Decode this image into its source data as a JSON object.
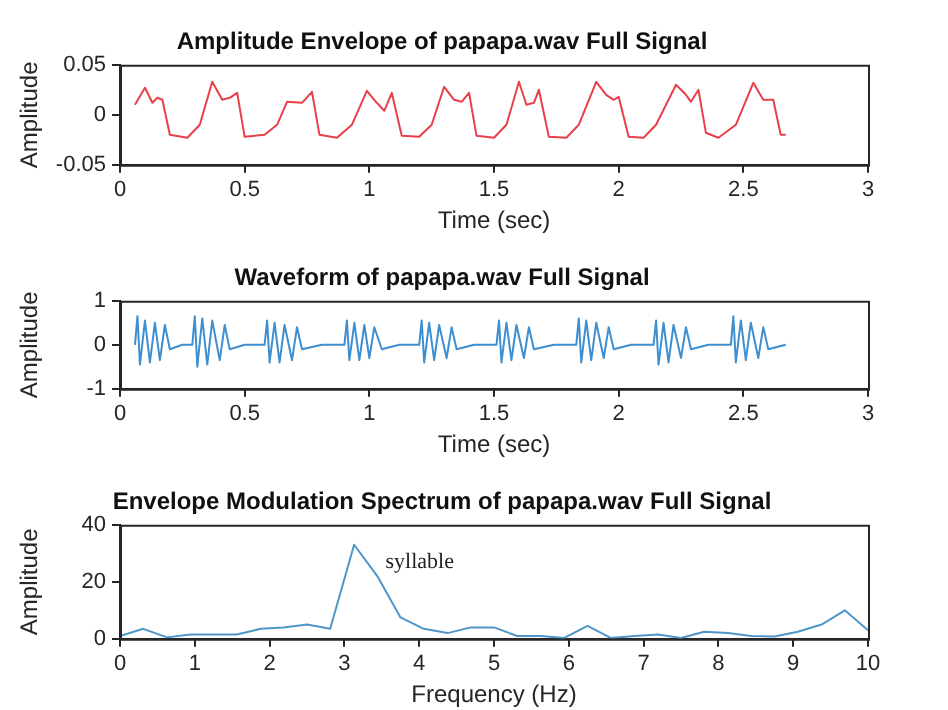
{
  "chart_data": [
    {
      "type": "line",
      "title": "Amplitude Envelope of papapa.wav Full Signal",
      "xlabel": "Time (sec)",
      "ylabel": "Amplitude",
      "xlim": [
        0,
        3
      ],
      "xticks": [
        0,
        0.5,
        1,
        1.5,
        2,
        2.5,
        3
      ],
      "ylim": [
        -0.05,
        0.05
      ],
      "yticks": [
        -0.05,
        0,
        0.05
      ],
      "grid": false,
      "legend": false,
      "series": [
        {
          "color": "#e8404a",
          "x": [
            0.06,
            0.1,
            0.13,
            0.15,
            0.17,
            0.2,
            0.27,
            0.32,
            0.37,
            0.41,
            0.44,
            0.47,
            0.5,
            0.58,
            0.63,
            0.67,
            0.73,
            0.77,
            0.8,
            0.87,
            0.93,
            0.99,
            1.03,
            1.06,
            1.09,
            1.13,
            1.2,
            1.25,
            1.3,
            1.34,
            1.37,
            1.4,
            1.43,
            1.5,
            1.55,
            1.6,
            1.63,
            1.66,
            1.68,
            1.72,
            1.79,
            1.84,
            1.91,
            1.95,
            1.98,
            2.0,
            2.04,
            2.1,
            2.15,
            2.23,
            2.27,
            2.29,
            2.32,
            2.35,
            2.4,
            2.47,
            2.54,
            2.58,
            2.62,
            2.65,
            2.67
          ],
          "values": [
            0.01,
            0.027,
            0.012,
            0.017,
            0.015,
            -0.02,
            -0.023,
            -0.01,
            0.033,
            0.015,
            0.017,
            0.022,
            -0.022,
            -0.02,
            -0.01,
            0.013,
            0.012,
            0.023,
            -0.02,
            -0.023,
            -0.01,
            0.024,
            0.012,
            0.004,
            0.022,
            -0.021,
            -0.022,
            -0.01,
            0.028,
            0.015,
            0.013,
            0.022,
            -0.021,
            -0.023,
            -0.01,
            0.033,
            0.01,
            0.012,
            0.025,
            -0.022,
            -0.023,
            -0.01,
            0.033,
            0.02,
            0.015,
            0.018,
            -0.022,
            -0.023,
            -0.01,
            0.03,
            0.02,
            0.013,
            0.025,
            -0.018,
            -0.023,
            -0.01,
            0.032,
            0.015,
            0.015,
            -0.02,
            -0.02
          ]
        }
      ]
    },
    {
      "type": "line",
      "title": "Waveform of papapa.wav Full Signal",
      "xlabel": "Time (sec)",
      "ylabel": "Amplitude",
      "xlim": [
        0,
        3
      ],
      "xticks": [
        0,
        0.5,
        1,
        1.5,
        2,
        2.5,
        3
      ],
      "ylim": [
        -1,
        1
      ],
      "yticks": [
        -1,
        0,
        1
      ],
      "grid": false,
      "legend": false,
      "series": [
        {
          "color": "#3d8fd1",
          "x": [
            0.06,
            0.07,
            0.08,
            0.1,
            0.12,
            0.14,
            0.16,
            0.18,
            0.2,
            0.25,
            0.29,
            0.3,
            0.31,
            0.33,
            0.35,
            0.37,
            0.4,
            0.42,
            0.44,
            0.5,
            0.58,
            0.59,
            0.6,
            0.62,
            0.64,
            0.66,
            0.69,
            0.71,
            0.73,
            0.81,
            0.9,
            0.91,
            0.92,
            0.94,
            0.96,
            0.98,
            1.0,
            1.02,
            1.05,
            1.12,
            1.2,
            1.21,
            1.22,
            1.24,
            1.26,
            1.28,
            1.31,
            1.33,
            1.35,
            1.42,
            1.51,
            1.52,
            1.53,
            1.55,
            1.57,
            1.59,
            1.62,
            1.64,
            1.66,
            1.74,
            1.83,
            1.84,
            1.85,
            1.87,
            1.89,
            1.91,
            1.94,
            1.96,
            1.98,
            2.05,
            2.14,
            2.15,
            2.16,
            2.18,
            2.2,
            2.22,
            2.25,
            2.27,
            2.29,
            2.36,
            2.45,
            2.46,
            2.47,
            2.49,
            2.51,
            2.53,
            2.56,
            2.58,
            2.6,
            2.67
          ],
          "values": [
            0,
            0.65,
            -0.45,
            0.55,
            -0.4,
            0.5,
            -0.35,
            0.45,
            -0.1,
            0,
            0,
            0.65,
            -0.5,
            0.6,
            -0.45,
            0.55,
            -0.35,
            0.45,
            -0.1,
            0,
            0,
            0.55,
            -0.4,
            0.5,
            -0.4,
            0.45,
            -0.35,
            0.4,
            -0.1,
            0,
            0,
            0.55,
            -0.35,
            0.5,
            -0.35,
            0.45,
            -0.3,
            0.4,
            -0.1,
            0,
            0,
            0.55,
            -0.4,
            0.5,
            -0.35,
            0.45,
            -0.3,
            0.4,
            -0.1,
            0,
            0,
            0.55,
            -0.4,
            0.5,
            -0.35,
            0.45,
            -0.3,
            0.4,
            -0.1,
            0,
            0,
            0.6,
            -0.4,
            0.55,
            -0.35,
            0.5,
            -0.3,
            0.4,
            -0.1,
            0,
            0,
            0.55,
            -0.45,
            0.5,
            -0.4,
            0.45,
            -0.3,
            0.4,
            -0.1,
            0,
            0,
            0.65,
            -0.4,
            0.55,
            -0.35,
            0.5,
            -0.3,
            0.4,
            -0.1,
            0
          ]
        }
      ]
    },
    {
      "type": "line",
      "title": "Envelope Modulation Spectrum of papapa.wav Full Signal",
      "xlabel": "Frequency (Hz)",
      "ylabel": "Amplitude",
      "xlim": [
        0,
        10
      ],
      "xticks": [
        0,
        1,
        2,
        3,
        4,
        5,
        6,
        7,
        8,
        9,
        10
      ],
      "ylim": [
        0,
        40
      ],
      "yticks": [
        0,
        20,
        40
      ],
      "grid": false,
      "legend": false,
      "annotations": [
        "syllable"
      ],
      "series": [
        {
          "color": "#4f96c8",
          "x": [
            0,
            0.31,
            0.63,
            0.94,
            1.25,
            1.56,
            1.88,
            2.19,
            2.5,
            2.81,
            3.13,
            3.44,
            3.75,
            4.06,
            4.38,
            4.69,
            5.0,
            5.31,
            5.63,
            5.94,
            6.25,
            6.56,
            6.88,
            7.19,
            7.5,
            7.81,
            8.13,
            8.44,
            8.75,
            9.06,
            9.38,
            9.69,
            10
          ],
          "values": [
            1,
            3.5,
            0.5,
            1.5,
            1.5,
            1.5,
            3.5,
            4,
            5,
            3.5,
            33,
            22,
            7.5,
            3.5,
            2,
            4,
            4,
            1,
            1,
            0.3,
            4.5,
            0.3,
            1,
            1.5,
            0.3,
            2.5,
            2,
            1,
            0.8,
            2.5,
            5,
            10,
            3
          ]
        }
      ]
    }
  ]
}
